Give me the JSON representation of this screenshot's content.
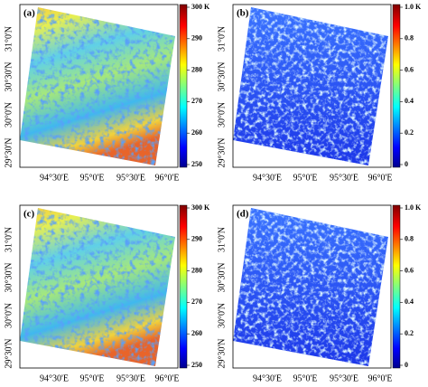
{
  "panels": [
    {
      "label": "(a)",
      "colorbar": [
        "300 K",
        "290",
        "280",
        "270",
        "260",
        "250"
      ],
      "y_labels": [
        "31°0'N",
        "30°30'N",
        "30°0'N",
        "29°30'N"
      ],
      "x_labels": [
        "94°30'E",
        "95°0'E",
        "95°30'E",
        "96°0'E"
      ]
    },
    {
      "label": "(b)",
      "colorbar": [
        "1.0 K",
        "0.8",
        "0.6",
        "0.4",
        "0.2",
        "0"
      ],
      "y_labels": [
        "31°0'N",
        "30°30'N",
        "30°0'N",
        "29°30'N"
      ],
      "x_labels": [
        "94°30'E",
        "95°0'E",
        "95°30'E",
        "96°0'E"
      ]
    },
    {
      "label": "(c)",
      "colorbar": [
        "300 K",
        "290",
        "280",
        "270",
        "260",
        "250"
      ],
      "y_labels": [
        "31°0'N",
        "30°30'N",
        "30°0'N",
        "29°30'N"
      ],
      "x_labels": [
        "94°30'E",
        "95°0'E",
        "95°30'E",
        "96°0'E"
      ]
    },
    {
      "label": "(d)",
      "colorbar": [
        "1.0 K",
        "0.8",
        "0.6",
        "0.4",
        "0.2",
        "0"
      ],
      "y_labels": [
        "31°0'N",
        "30°30'N",
        "30°0'N",
        "29°30'N"
      ],
      "x_labels": [
        "94°30'E",
        "95°0'E",
        "95°30'E",
        "96°0'E"
      ]
    }
  ]
}
